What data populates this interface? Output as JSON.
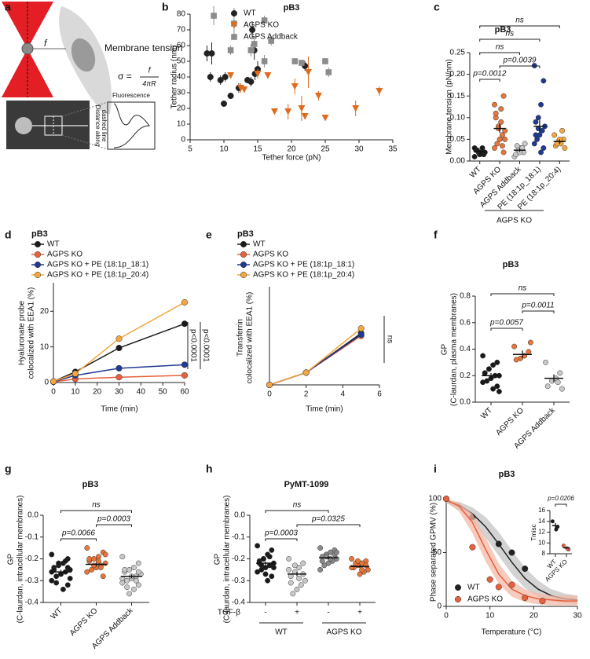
{
  "panel_a": {
    "letter": "a",
    "force": "f",
    "title": "Membrane tension",
    "formula_lhs": "σ =",
    "formula_num": "f",
    "formula_den": "4πR",
    "profile_title": "Fluorescence",
    "profile_axis": [
      "Distance along",
      "dashed line"
    ]
  },
  "chart_data": [
    {
      "panel": "b",
      "type": "scatter",
      "title": "pB3",
      "xlabel": "Tether force (pN)",
      "ylabel": "Tether radius (nm)",
      "xlim": [
        5,
        35
      ],
      "xticks": [
        5,
        10,
        15,
        20,
        25,
        30,
        35
      ],
      "ylim": [
        0,
        80
      ],
      "yticks": [
        0,
        10,
        20,
        30,
        40,
        50,
        60,
        70,
        80
      ],
      "legend": "upper right",
      "series": [
        {
          "name": "WT",
          "color": "#222222",
          "marker": "circle",
          "x": [
            7.5,
            8.2,
            8,
            9.5,
            10,
            10.2,
            11,
            12.2,
            13.5,
            14,
            14.5,
            14.2,
            14.6,
            15,
            22
          ],
          "values": [
            55,
            55,
            40,
            38,
            23,
            40,
            28,
            33,
            38,
            37,
            57,
            70,
            42,
            45,
            47
          ],
          "errors": [
            5,
            7,
            3,
            3,
            1,
            3,
            2,
            3,
            2,
            3,
            6,
            5,
            4,
            5,
            3
          ]
        },
        {
          "name": "AGPS KO",
          "color": "#e06b1f",
          "marker": "triangle",
          "x": [
            11,
            12.5,
            13,
            15,
            16.5,
            17.5,
            19.5,
            20.5,
            21.5,
            22,
            22.5,
            24,
            25,
            29.5,
            33
          ],
          "values": [
            41,
            33,
            32,
            42,
            41,
            18,
            18,
            34,
            20,
            15,
            43,
            28,
            14,
            20,
            31
          ],
          "errors": [
            2,
            3,
            2,
            3,
            2,
            1,
            5,
            5,
            8,
            2,
            10,
            3,
            1,
            5,
            3
          ]
        },
        {
          "name": "AGPS Addback",
          "color": "#8c8c8c",
          "marker": "square",
          "x": [
            8.5,
            11,
            11.5,
            14,
            14.5,
            16,
            16,
            17,
            20.5,
            21.5,
            25,
            25.5
          ],
          "values": [
            79,
            57,
            74,
            57,
            61,
            50,
            76,
            63,
            50,
            49,
            50,
            43
          ],
          "errors": [
            6,
            3,
            10,
            4,
            5,
            4,
            3,
            3,
            2,
            2,
            2,
            3
          ]
        }
      ]
    },
    {
      "panel": "c",
      "type": "dot",
      "title": "pB3",
      "ylabel": "Membrane tension (pN/nm)",
      "ylim": [
        0,
        0.25
      ],
      "yticks": [
        {
          "value": 0,
          "label": "0.00"
        },
        0.05,
        {
          "value": 0.1,
          "label": "0.10"
        },
        0.15,
        {
          "value": 0.2,
          "label": "0.20"
        },
        0.25
      ],
      "categories": [
        "WT",
        "AGPS KO",
        "AGPS Addback",
        "PE (18:1p_18:1)",
        "PE (18:1p_20:4)"
      ],
      "colors": [
        "#1a1a1a",
        "#e8763a",
        "#c8c8c8",
        "#1f3a93",
        "#f4a640"
      ],
      "points": [
        [
          0.01,
          0.015,
          0.02,
          0.02,
          0.025,
          0.02,
          0.03,
          0.015,
          0.025,
          0.03,
          0.02,
          0.018
        ],
        [
          0.13,
          0.15,
          0.12,
          0.08,
          0.1,
          0.07,
          0.06,
          0.05,
          0.04,
          0.03,
          0.02,
          0.09,
          0.075,
          0.11,
          0.05,
          0.035
        ],
        [
          0.01,
          0.02,
          0.03,
          0.025,
          0.015,
          0.04,
          0.03,
          0.02,
          0.035
        ],
        [
          0.22,
          0.185,
          0.13,
          0.1,
          0.09,
          0.08,
          0.07,
          0.06,
          0.05,
          0.04,
          0.03,
          0.02,
          0.075,
          0.06
        ],
        [
          0.06,
          0.05,
          0.04,
          0.045,
          0.035,
          0.03,
          0.07,
          0.05,
          0.04
        ]
      ],
      "means": [
        0.022,
        0.075,
        0.025,
        0.08,
        0.045
      ],
      "errors": [
        0.003,
        0.01,
        0.004,
        0.014,
        0.005
      ],
      "brackets": [
        {
          "text": "p=0.0012",
          "from": 0,
          "to": 1
        },
        {
          "text": "p=0.0039",
          "from": 1,
          "to": 3
        },
        {
          "text": "ns",
          "from": 0,
          "to": 2
        },
        {
          "text": "ns",
          "from": 0,
          "to": 3
        },
        {
          "text": "ns",
          "from": 0,
          "to": 4
        }
      ],
      "group_label": "AGPS KO"
    },
    {
      "panel": "d",
      "type": "line",
      "title": "pB3",
      "xlabel": "Time (min)",
      "ylabel": [
        "Hyaluronate probe",
        "colocalized with EEA1 (%)"
      ],
      "x": [
        0,
        10,
        30,
        60
      ],
      "xlim": [
        0,
        60
      ],
      "xticks": [
        0,
        10,
        20,
        30,
        40,
        50,
        60
      ],
      "ylim": [
        0,
        28
      ],
      "yticks": [
        0,
        10,
        20
      ],
      "legend": "upper left",
      "series": [
        {
          "name": "WT",
          "color": "#1a1a1a",
          "values": [
            0.3,
            3,
            9.7,
            16.5
          ]
        },
        {
          "name": "AGPS KO",
          "color": "#e8603c",
          "values": [
            0.2,
            1,
            1.5,
            2
          ]
        },
        {
          "name": "AGPS KO + PE (18:1p_18:1)",
          "color": "#1f3a93",
          "values": [
            0.2,
            2,
            4,
            5
          ]
        },
        {
          "name": "AGPS KO + PE (18:1p_20:4)",
          "color": "#f4a640",
          "values": [
            0.3,
            2.5,
            12.3,
            22.5
          ]
        }
      ],
      "annotations": [
        "p<0.0001",
        "p<0.0001"
      ]
    },
    {
      "panel": "e",
      "type": "line",
      "title": "pB3",
      "xlabel": "Time (min)",
      "ylabel": [
        "Transferrin",
        "colocalized with EEA1 (%)"
      ],
      "x": [
        0,
        2,
        5
      ],
      "xlim": [
        0,
        6
      ],
      "xticks": [
        0,
        2,
        4,
        6
      ],
      "ylim": [
        0,
        40
      ],
      "legend": "upper left",
      "series": [
        {
          "name": "WT",
          "color": "#1a1a1a",
          "values": [
            0,
            5,
            21
          ]
        },
        {
          "name": "AGPS KO",
          "color": "#e8603c",
          "values": [
            0,
            5,
            20
          ]
        },
        {
          "name": "AGPS KO + PE (18:1p_18:1)",
          "color": "#1f3a93",
          "values": [
            0,
            5,
            20.5
          ]
        },
        {
          "name": "AGPS KO + PE (18:1p_20:4)",
          "color": "#f4a640",
          "values": [
            0,
            5,
            23
          ]
        }
      ],
      "annotations": [
        "ns"
      ]
    },
    {
      "panel": "f",
      "type": "dot",
      "title": "pB3",
      "ylabel": [
        "GP",
        "(C-laurdan, plasma membranes)"
      ],
      "ylim": [
        0,
        0.8
      ],
      "yticks": [
        {
          "value": 0,
          "label": "0.0"
        },
        0.2,
        0.4,
        0.6,
        0.8
      ],
      "categories": [
        "WT",
        "AGPS KO",
        "AGPS Addback"
      ],
      "colors": [
        "#1a1a1a",
        "#e8763a",
        "#c8c8c8"
      ],
      "points": [
        [
          0.35,
          0.3,
          0.28,
          0.25,
          0.22,
          0.2,
          0.2,
          0.18,
          0.16,
          0.15,
          0.12,
          0.1,
          0.25,
          0.22,
          0.08
        ],
        [
          0.42,
          0.38,
          0.35,
          0.33,
          0.32,
          0.45
        ],
        [
          0.3,
          0.22,
          0.18,
          0.16,
          0.12,
          0.1,
          0.15
        ]
      ],
      "means": [
        0.2,
        0.36,
        0.18
      ],
      "errors": [
        0.02,
        0.03,
        0.03
      ],
      "brackets": [
        {
          "text": "p=0.0057",
          "from": 0,
          "to": 1
        },
        {
          "text": "p=0.0011",
          "from": 1,
          "to": 2
        },
        {
          "text": "ns",
          "from": 0,
          "to": 2
        }
      ]
    },
    {
      "panel": "g",
      "type": "dot",
      "title": "pB3",
      "ylabel": [
        "GP",
        "(C-laurdan, intracellular membranes)"
      ],
      "ylim": [
        -0.4,
        0
      ],
      "yticks": [
        -0.4,
        -0.3,
        -0.2,
        -0.1,
        {
          "value": 0,
          "label": "0.0"
        }
      ],
      "categories": [
        "WT",
        "AGPS KO",
        "AGPS Addback"
      ],
      "colors": [
        "#1a1a1a",
        "#e8763a",
        "#c8c8c8"
      ],
      "points": [
        [
          -0.18,
          -0.2,
          -0.22,
          -0.23,
          -0.24,
          -0.25,
          -0.26,
          -0.27,
          -0.28,
          -0.3,
          -0.32,
          -0.34,
          -0.22,
          -0.25,
          -0.29,
          -0.21,
          -0.27,
          -0.31,
          -0.26,
          -0.24
        ],
        [
          -0.15,
          -0.17,
          -0.19,
          -0.2,
          -0.21,
          -0.22,
          -0.23,
          -0.24,
          -0.25,
          -0.26,
          -0.28,
          -0.21,
          -0.23,
          -0.2,
          -0.18,
          -0.24
        ],
        [
          -0.19,
          -0.22,
          -0.24,
          -0.25,
          -0.26,
          -0.27,
          -0.28,
          -0.29,
          -0.3,
          -0.31,
          -0.32,
          -0.34,
          -0.36,
          -0.25,
          -0.27,
          -0.3,
          -0.28,
          -0.33,
          -0.29,
          -0.26
        ]
      ],
      "means": [
        -0.26,
        -0.225,
        -0.28
      ],
      "errors": [
        0.01,
        0.008,
        0.008
      ],
      "brackets": [
        {
          "text": "p=0.0066",
          "from": 0,
          "to": 1
        },
        {
          "text": "p=0.0003",
          "from": 1,
          "to": 2
        },
        {
          "text": "ns",
          "from": 0,
          "to": 2
        }
      ]
    },
    {
      "panel": "h",
      "type": "dot",
      "title": "PyMT-1099",
      "ylabel": [
        "GP",
        "(C-laurdan, intracellular membranes)"
      ],
      "ylim": [
        -0.4,
        0
      ],
      "yticks": [
        -0.4,
        -0.3,
        -0.2,
        -0.1,
        {
          "value": 0,
          "label": "0.0"
        }
      ],
      "categories": [
        "-",
        "+",
        "-",
        "+"
      ],
      "x_prefix": "TGF-β",
      "x_group_labels": [
        "WT",
        "AGPS KO"
      ],
      "colors": [
        "#1a1a1a",
        "#c8c8c8",
        "#8a8a8a",
        "#e8763a"
      ],
      "points": [
        [
          -0.14,
          -0.16,
          -0.18,
          -0.2,
          -0.21,
          -0.22,
          -0.23,
          -0.24,
          -0.25,
          -0.26,
          -0.28,
          -0.3,
          -0.2,
          -0.22,
          -0.24,
          -0.19,
          -0.27,
          -0.23
        ],
        [
          -0.2,
          -0.22,
          -0.24,
          -0.26,
          -0.28,
          -0.3,
          -0.32,
          -0.34,
          -0.36,
          -0.25,
          -0.27,
          -0.29,
          -0.23,
          -0.31
        ],
        [
          -0.15,
          -0.16,
          -0.17,
          -0.18,
          -0.19,
          -0.2,
          -0.21,
          -0.22,
          -0.23,
          -0.25,
          -0.18,
          -0.2,
          -0.19,
          -0.21,
          -0.17
        ],
        [
          -0.2,
          -0.21,
          -0.22,
          -0.23,
          -0.24,
          -0.25,
          -0.26,
          -0.27,
          -0.22,
          -0.24,
          -0.23,
          -0.25,
          -0.21
        ]
      ],
      "means": [
        -0.22,
        -0.27,
        -0.195,
        -0.235
      ],
      "errors": [
        0.008,
        0.01,
        0.007,
        0.006
      ],
      "brackets": [
        {
          "text": "p=0.0003",
          "from": 0,
          "to": 1
        },
        {
          "text": "p=0.0325",
          "from": 1,
          "to": 3
        },
        {
          "text": "ns",
          "from": 0,
          "to": 2
        }
      ]
    },
    {
      "panel": "i",
      "type": "line",
      "title": "pB3",
      "xlabel": "Temperature (°C)",
      "ylabel": "Phase separated GPMV (%)",
      "xlim": [
        0,
        30
      ],
      "xticks": [
        0,
        10,
        20,
        30
      ],
      "ylim": [
        0,
        100
      ],
      "yticks": [
        0,
        50,
        100
      ],
      "legend": "lower left",
      "series": [
        {
          "name": "WT",
          "color": "#222222",
          "band_color": "#c4c4c4",
          "x": [
            0,
            6,
            12,
            15,
            18,
            22
          ],
          "values": [
            100,
            83,
            58,
            50,
            35,
            5
          ],
          "fit_x": [
            0,
            3,
            6,
            9,
            12,
            15,
            18,
            21,
            24,
            27,
            30
          ],
          "fit_values": [
            98,
            94,
            86,
            74,
            58,
            41,
            26,
            16,
            10,
            7,
            6
          ],
          "fit_low": [
            96,
            90,
            79,
            64,
            47,
            30,
            17,
            9,
            5,
            3,
            2
          ],
          "fit_high": [
            99,
            97,
            92,
            83,
            69,
            52,
            36,
            24,
            16,
            12,
            10
          ]
        },
        {
          "name": "AGPS KO",
          "color": "#e8603c",
          "band_color": "#f3b8a5",
          "x": [
            0,
            6,
            10,
            12,
            15,
            18,
            22
          ],
          "values": [
            100,
            55,
            25,
            18,
            20,
            8,
            5
          ],
          "fit_x": [
            0,
            3,
            6,
            9,
            12,
            15,
            18,
            21,
            24,
            27,
            30
          ],
          "fit_values": [
            99,
            93,
            78,
            53,
            30,
            16,
            10,
            7,
            6,
            5,
            5
          ],
          "fit_low": [
            97,
            88,
            68,
            42,
            21,
            9,
            4,
            2,
            1,
            1,
            1
          ],
          "fit_high": [
            100,
            96,
            86,
            64,
            40,
            24,
            16,
            12,
            10,
            10,
            10
          ]
        }
      ],
      "inset": {
        "type": "dot",
        "ylabel": "Tmisc",
        "ylim": [
          8,
          16
        ],
        "yticks": [
          8,
          10,
          12,
          14,
          16
        ],
        "categories": [
          "WT",
          "AGPS KO"
        ],
        "colors": [
          "#1a1a1a",
          "#e8603c"
        ],
        "points": [
          [
            14,
            13,
            12.5
          ],
          [
            9.5,
            8.8,
            9
          ]
        ],
        "means": [
          13.2,
          9.1
        ],
        "errors": [
          0.5,
          0.2
        ],
        "brackets": [
          {
            "text": "p=0.0206",
            "from": 0,
            "to": 1
          }
        ]
      }
    }
  ]
}
